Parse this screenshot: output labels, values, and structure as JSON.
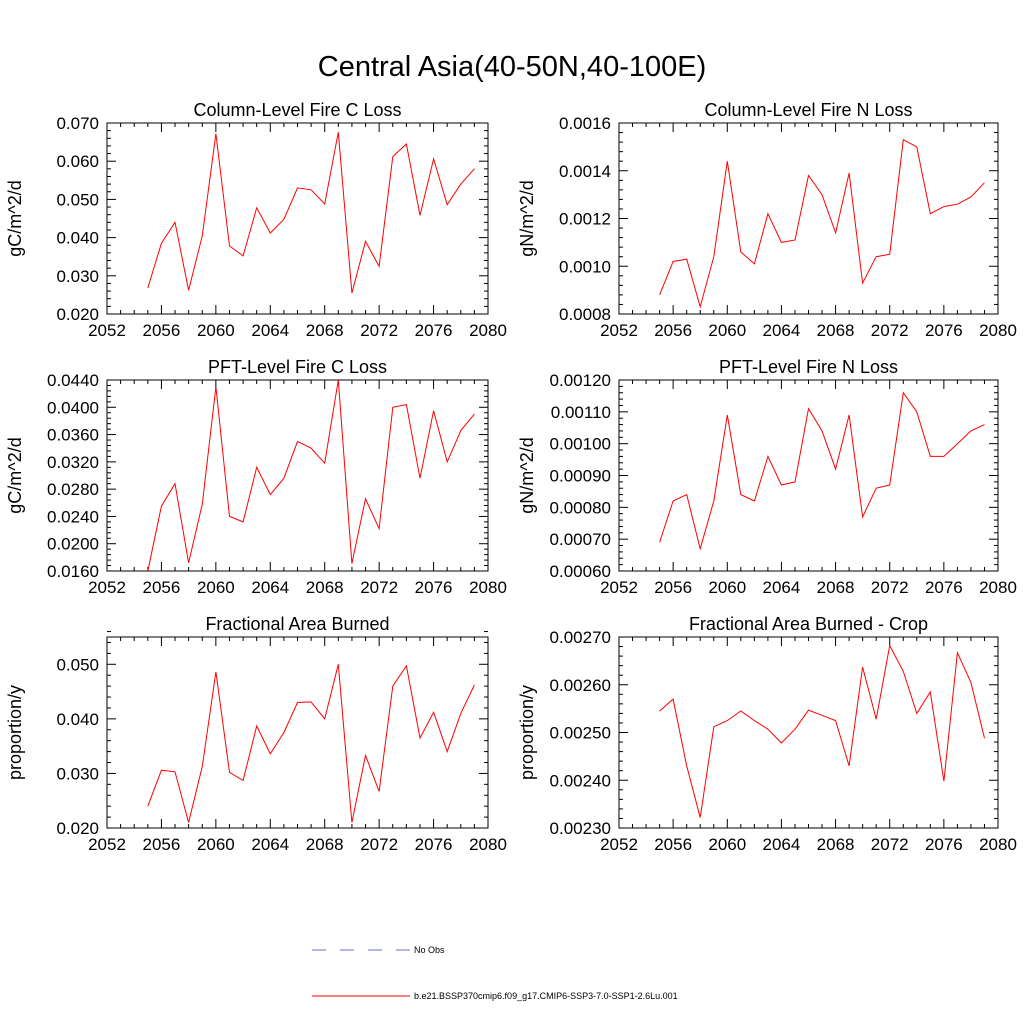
{
  "figure_title": "Central Asia(40-50N,40-100E)",
  "legend": {
    "items": [
      {
        "label": "No Obs",
        "color": "#6b6bd6",
        "style": "dashed"
      },
      {
        "label": "b.e21.BSSP370cmip6.f09_g17.CMIP6-SSP3-7.0-SSP1-2.6Lu.001",
        "color": "#ff0000",
        "style": "solid"
      }
    ]
  },
  "chart_data": [
    {
      "type": "line",
      "title": "Column-Level Fire C Loss",
      "ylabel": "gC/m^2/d",
      "xlim": [
        2052,
        2080
      ],
      "ylim": [
        0.02,
        0.07
      ],
      "x_ticks": [
        "2052",
        "2056",
        "2060",
        "2064",
        "2068",
        "2072",
        "2076",
        "2080"
      ],
      "y_ticks": [
        "0.020",
        "0.030",
        "0.040",
        "0.050",
        "0.060",
        "0.070"
      ],
      "x": [
        2055,
        2056,
        2057,
        2058,
        2059,
        2060,
        2061,
        2062,
        2063,
        2064,
        2065,
        2066,
        2067,
        2068,
        2069,
        2070,
        2071,
        2072,
        2073,
        2074,
        2075,
        2076,
        2077,
        2078,
        2079
      ],
      "series": [
        {
          "color": "#ff0000",
          "values": [
            0.0268,
            0.0385,
            0.044,
            0.0262,
            0.0405,
            0.0672,
            0.0378,
            0.0352,
            0.0478,
            0.0412,
            0.0448,
            0.053,
            0.0525,
            0.0488,
            0.0676,
            0.0255,
            0.039,
            0.0325,
            0.0612,
            0.0645,
            0.0458,
            0.0606,
            0.0486,
            0.054,
            0.058
          ]
        }
      ]
    },
    {
      "type": "line",
      "title": "Column-Level Fire N Loss",
      "ylabel": "gN/m^2/d",
      "xlim": [
        2052,
        2080
      ],
      "ylim": [
        0.0008,
        0.0016
      ],
      "x_ticks": [
        "2052",
        "2056",
        "2060",
        "2064",
        "2068",
        "2072",
        "2076",
        "2080"
      ],
      "y_ticks": [
        "0.0008",
        "0.0010",
        "0.0012",
        "0.0014",
        "0.0016"
      ],
      "x": [
        2055,
        2056,
        2057,
        2058,
        2059,
        2060,
        2061,
        2062,
        2063,
        2064,
        2065,
        2066,
        2067,
        2068,
        2069,
        2070,
        2071,
        2072,
        2073,
        2074,
        2075,
        2076,
        2077,
        2078,
        2079
      ],
      "series": [
        {
          "color": "#ff0000",
          "values": [
            0.00088,
            0.00102,
            0.00103,
            0.00083,
            0.00104,
            0.00144,
            0.00106,
            0.00101,
            0.00122,
            0.0011,
            0.00111,
            0.00138,
            0.0013,
            0.00114,
            0.00139,
            0.00093,
            0.00104,
            0.00105,
            0.00153,
            0.0015,
            0.00122,
            0.00125,
            0.00126,
            0.00129,
            0.00135
          ]
        }
      ]
    },
    {
      "type": "line",
      "title": "PFT-Level Fire C Loss",
      "ylabel": "gC/m^2/d",
      "xlim": [
        2052,
        2080
      ],
      "ylim": [
        0.016,
        0.044
      ],
      "x_ticks": [
        "2052",
        "2056",
        "2060",
        "2064",
        "2068",
        "2072",
        "2076",
        "2080"
      ],
      "y_ticks": [
        "0.0160",
        "0.0200",
        "0.0240",
        "0.0280",
        "0.0320",
        "0.0360",
        "0.0400",
        "0.0440"
      ],
      "x": [
        2055,
        2056,
        2057,
        2058,
        2059,
        2060,
        2061,
        2062,
        2063,
        2064,
        2065,
        2066,
        2067,
        2068,
        2069,
        2070,
        2071,
        2072,
        2073,
        2074,
        2075,
        2076,
        2077,
        2078,
        2079
      ],
      "series": [
        {
          "color": "#ff0000",
          "values": [
            0.016,
            0.0255,
            0.0288,
            0.0172,
            0.0258,
            0.043,
            0.024,
            0.0232,
            0.0312,
            0.0272,
            0.0296,
            0.035,
            0.034,
            0.0318,
            0.0442,
            0.0171,
            0.0266,
            0.0222,
            0.04,
            0.0404,
            0.0296,
            0.0395,
            0.032,
            0.0366,
            0.039
          ]
        }
      ]
    },
    {
      "type": "line",
      "title": "PFT-Level Fire N Loss",
      "ylabel": "gN/m^2/d",
      "xlim": [
        2052,
        2080
      ],
      "ylim": [
        0.0006,
        0.0012
      ],
      "x_ticks": [
        "2052",
        "2056",
        "2060",
        "2064",
        "2068",
        "2072",
        "2076",
        "2080"
      ],
      "y_ticks": [
        "0.00060",
        "0.00070",
        "0.00080",
        "0.00090",
        "0.00100",
        "0.00110",
        "0.00120"
      ],
      "x": [
        2055,
        2056,
        2057,
        2058,
        2059,
        2060,
        2061,
        2062,
        2063,
        2064,
        2065,
        2066,
        2067,
        2068,
        2069,
        2070,
        2071,
        2072,
        2073,
        2074,
        2075,
        2076,
        2077,
        2078,
        2079
      ],
      "series": [
        {
          "color": "#ff0000",
          "values": [
            0.00069,
            0.00082,
            0.00084,
            0.00067,
            0.00082,
            0.00109,
            0.00084,
            0.00082,
            0.00096,
            0.00087,
            0.00088,
            0.00111,
            0.00104,
            0.00092,
            0.00109,
            0.00077,
            0.00086,
            0.00087,
            0.00116,
            0.0011,
            0.00096,
            0.00096,
            0.001,
            0.00104,
            0.00106
          ]
        }
      ]
    },
    {
      "type": "line",
      "title": "Fractional Area Burned",
      "ylabel": "proportion/y",
      "xlim": [
        2052,
        2080
      ],
      "ylim": [
        0.02,
        0.055
      ],
      "x_ticks": [
        "2052",
        "2056",
        "2060",
        "2064",
        "2068",
        "2072",
        "2076",
        "2080"
      ],
      "y_ticks": [
        "0.020",
        "0.030",
        "0.040",
        "0.050"
      ],
      "x": [
        2055,
        2056,
        2057,
        2058,
        2059,
        2060,
        2061,
        2062,
        2063,
        2064,
        2065,
        2066,
        2067,
        2068,
        2069,
        2070,
        2071,
        2072,
        2073,
        2074,
        2075,
        2076,
        2077,
        2078,
        2079
      ],
      "series": [
        {
          "color": "#ff0000",
          "values": [
            0.024,
            0.0306,
            0.0303,
            0.021,
            0.0313,
            0.0486,
            0.0302,
            0.0287,
            0.0387,
            0.0336,
            0.0375,
            0.043,
            0.0431,
            0.04,
            0.05,
            0.021,
            0.0333,
            0.0267,
            0.046,
            0.0497,
            0.0365,
            0.0412,
            0.034,
            0.041,
            0.0462
          ]
        }
      ]
    },
    {
      "type": "line",
      "title": "Fractional Area Burned - Crop",
      "ylabel": "proportion/y",
      "xlim": [
        2052,
        2080
      ],
      "ylim": [
        0.0023,
        0.0027
      ],
      "x_ticks": [
        "2052",
        "2056",
        "2060",
        "2064",
        "2068",
        "2072",
        "2076",
        "2080"
      ],
      "y_ticks": [
        "0.00230",
        "0.00240",
        "0.00250",
        "0.00260",
        "0.00270"
      ],
      "x": [
        2055,
        2056,
        2057,
        2058,
        2059,
        2060,
        2061,
        2062,
        2063,
        2064,
        2065,
        2066,
        2067,
        2068,
        2069,
        2070,
        2071,
        2072,
        2073,
        2074,
        2075,
        2076,
        2077,
        2078,
        2079
      ],
      "series": [
        {
          "color": "#ff0000",
          "values": [
            0.002545,
            0.00257,
            0.00243,
            0.002322,
            0.002512,
            0.002525,
            0.002545,
            0.002525,
            0.002507,
            0.002478,
            0.002507,
            0.002547,
            0.002536,
            0.002525,
            0.00243,
            0.002637,
            0.002528,
            0.002682,
            0.002628,
            0.00254,
            0.002585,
            0.002398,
            0.002667,
            0.002605,
            0.002488
          ]
        }
      ]
    }
  ]
}
